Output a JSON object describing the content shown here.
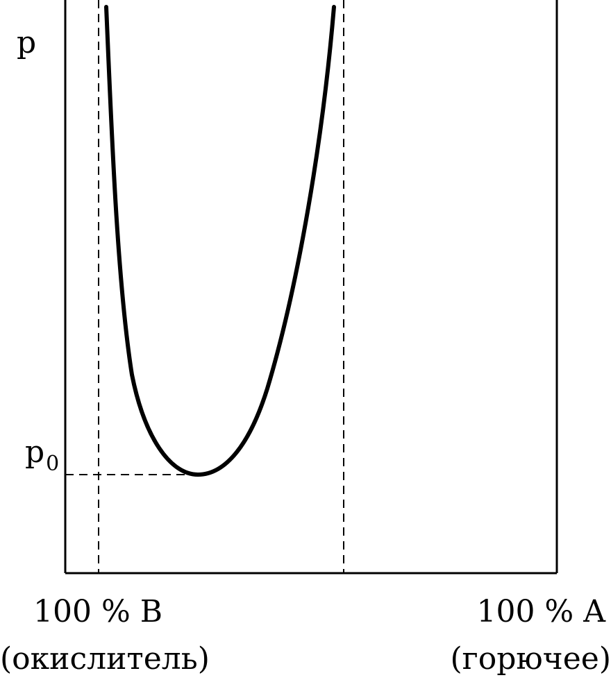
{
  "axis": {
    "y_label": "p",
    "min_pressure_label": "p",
    "min_pressure_subscript": "0"
  },
  "bottom_labels": {
    "left_main": "100 % B",
    "left_sub": "(окислитель)",
    "right_main": "100 % A",
    "right_sub": "(горючее)"
  },
  "colors": {
    "line": "#000000",
    "background": "#ffffff"
  }
}
